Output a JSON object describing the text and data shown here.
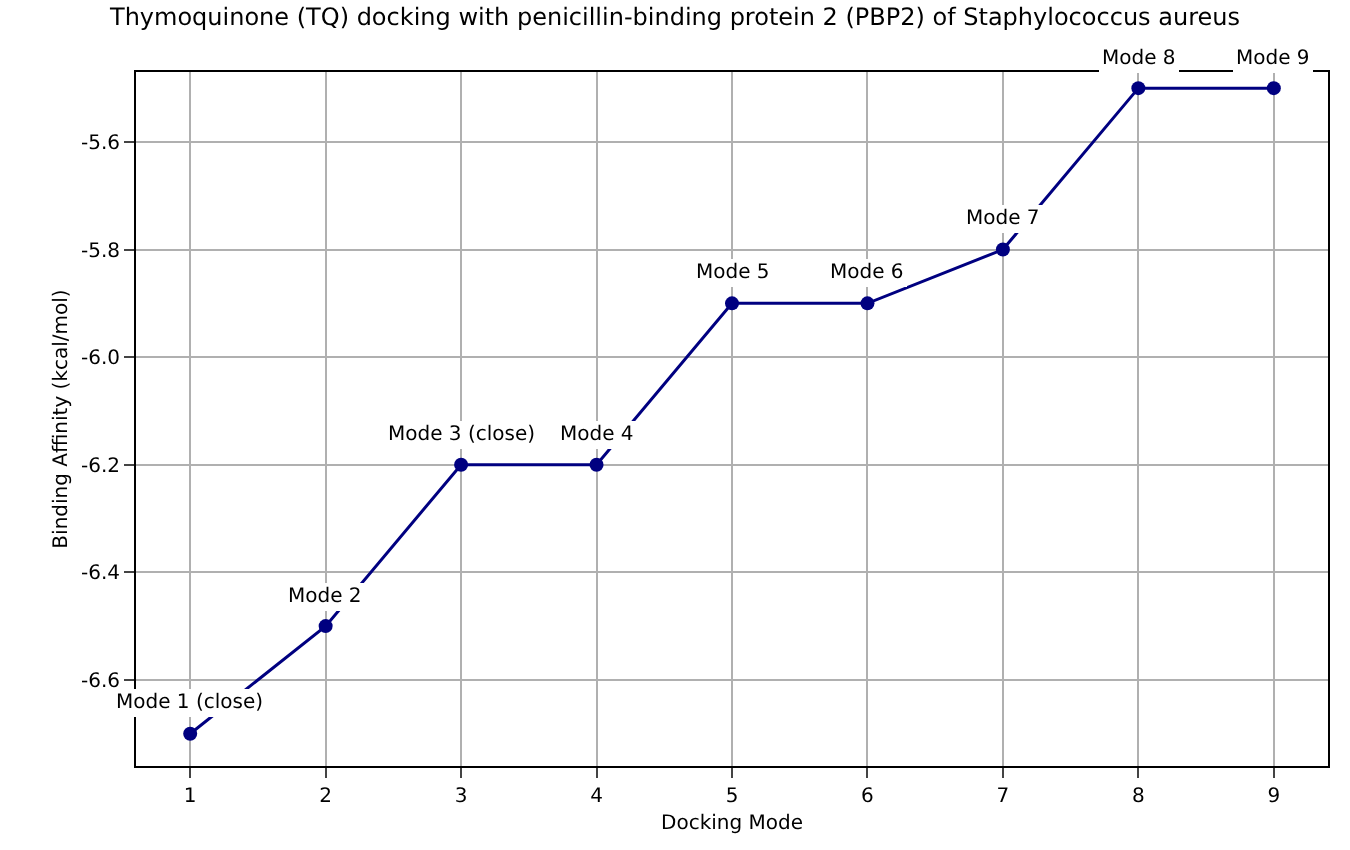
{
  "chart_data": {
    "type": "line",
    "title": "Thymoquinone (TQ) docking with penicillin-binding protein 2 (PBP2) of Staphylococcus aureus",
    "xlabel": "Docking Mode",
    "ylabel": "Binding Affinity (kcal/mol)",
    "x": [
      1,
      2,
      3,
      4,
      5,
      6,
      7,
      8,
      9
    ],
    "series": [
      {
        "color": "#000080",
        "values": [
          -6.7,
          -6.5,
          -6.2,
          -6.2,
          -5.9,
          -5.9,
          -5.8,
          -5.5,
          -5.5
        ]
      }
    ],
    "xlim": [
      0.6,
      9.4
    ],
    "xticks": [
      1,
      2,
      3,
      4,
      5,
      6,
      7,
      8,
      9
    ],
    "ylim": [
      -6.76,
      -5.47
    ],
    "yticks": [
      {
        "value": -6.6,
        "label": "-6.6"
      },
      {
        "value": -6.4,
        "label": "-6.4"
      },
      {
        "value": -6.2,
        "label": "-6.2"
      },
      {
        "value": -6.0,
        "label": "-6.0"
      },
      {
        "value": -5.8,
        "label": "-5.8"
      },
      {
        "value": -5.6,
        "label": "-5.6"
      }
    ],
    "grid": true,
    "marker": "circle",
    "line_style": "solid",
    "annotations": [
      {
        "text": "Mode 1 (close)",
        "x": 1,
        "y": -6.7
      },
      {
        "text": "Mode 2",
        "x": 2,
        "y": -6.5
      },
      {
        "text": "Mode 3 (close)",
        "x": 3,
        "y": -6.2
      },
      {
        "text": "Mode 4",
        "x": 4,
        "y": -6.2
      },
      {
        "text": "Mode 5",
        "x": 5,
        "y": -5.9
      },
      {
        "text": "Mode 6",
        "x": 6,
        "y": -5.9
      },
      {
        "text": "Mode 7",
        "x": 7,
        "y": -5.8
      },
      {
        "text": "Mode 8",
        "x": 8,
        "y": -5.5
      },
      {
        "text": "Mode 9",
        "x": 9,
        "y": -5.5
      }
    ]
  }
}
